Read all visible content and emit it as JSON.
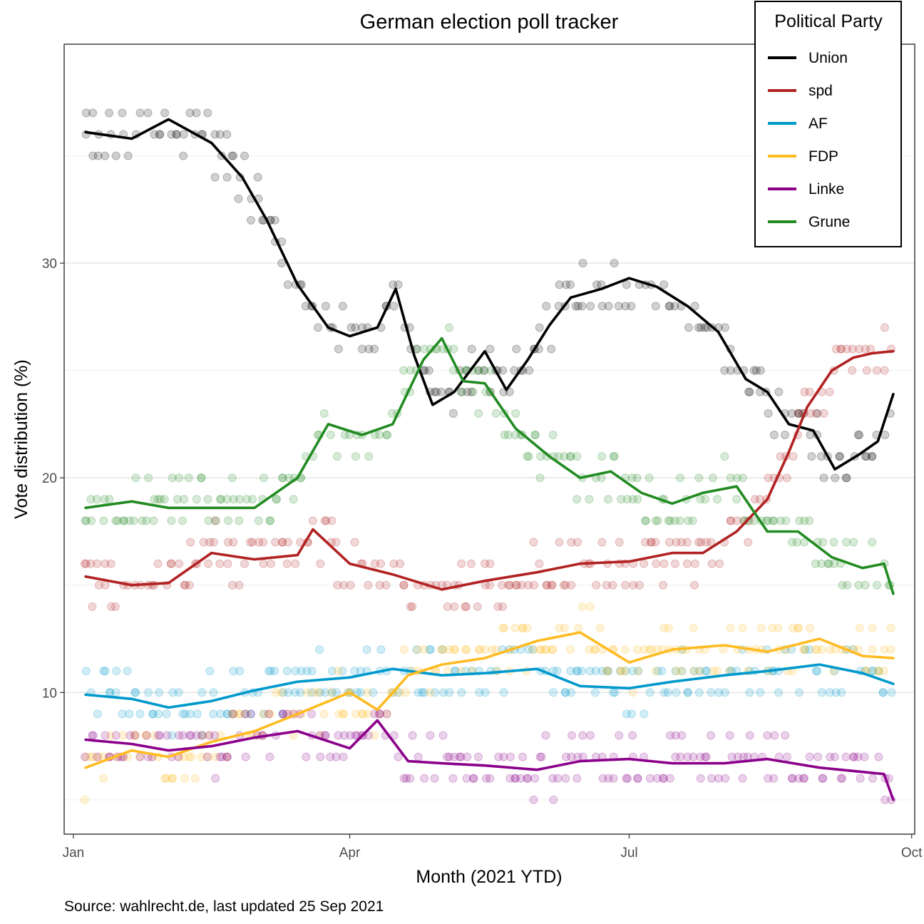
{
  "chart_data": {
    "type": "line",
    "title": "German election poll tracker",
    "xlabel": "Month (2021 YTD)",
    "ylabel": "Vote distribution (%)",
    "caption": "Source: wahlrecht.de, last updated 25 Sep 2021",
    "legend_title": "Political Party",
    "legend_position": "top-right",
    "grid": true,
    "x_type": "date",
    "xlim": [
      "2020-12-29",
      "2021-10-02"
    ],
    "ylim": [
      3.4,
      40.2
    ],
    "x_ticks": [
      {
        "date": "2021-01-01",
        "label": "Jan"
      },
      {
        "date": "2021-04-01",
        "label": "Apr"
      },
      {
        "date": "2021-07-01",
        "label": "Jul"
      },
      {
        "date": "2021-10-01",
        "label": "Oct"
      }
    ],
    "y_ticks": [
      10,
      20,
      30
    ],
    "series": [
      {
        "name": "Union",
        "color": "#000000",
        "x": [
          "2021-01-05",
          "2021-01-20",
          "2021-02-01",
          "2021-02-15",
          "2021-02-25",
          "2021-03-05",
          "2021-03-15",
          "2021-03-25",
          "2021-04-01",
          "2021-04-10",
          "2021-04-16",
          "2021-04-22",
          "2021-04-28",
          "2021-05-05",
          "2021-05-15",
          "2021-05-22",
          "2021-05-29",
          "2021-06-05",
          "2021-06-12",
          "2021-06-22",
          "2021-07-01",
          "2021-07-10",
          "2021-07-20",
          "2021-07-30",
          "2021-08-08",
          "2021-08-15",
          "2021-08-22",
          "2021-08-30",
          "2021-09-06",
          "2021-09-14",
          "2021-09-20",
          "2021-09-25"
        ],
        "values": [
          36.1,
          35.8,
          36.7,
          35.6,
          34.0,
          32.0,
          29.0,
          27.0,
          26.6,
          27.0,
          28.8,
          25.7,
          23.4,
          24.0,
          25.9,
          24.1,
          25.5,
          27.1,
          28.4,
          28.8,
          29.3,
          28.9,
          28.0,
          26.8,
          24.6,
          24.0,
          22.5,
          22.2,
          20.4,
          21.1,
          21.7,
          23.9
        ]
      },
      {
        "name": "spd",
        "color": "#B22222",
        "x": [
          "2021-01-05",
          "2021-01-20",
          "2021-02-01",
          "2021-02-15",
          "2021-03-01",
          "2021-03-15",
          "2021-03-20",
          "2021-04-01",
          "2021-04-15",
          "2021-05-01",
          "2021-05-15",
          "2021-06-01",
          "2021-06-15",
          "2021-07-01",
          "2021-07-15",
          "2021-07-25",
          "2021-08-05",
          "2021-08-15",
          "2021-08-22",
          "2021-08-28",
          "2021-09-05",
          "2021-09-12",
          "2021-09-18",
          "2021-09-25"
        ],
        "values": [
          15.4,
          15.0,
          15.1,
          16.5,
          16.2,
          16.4,
          17.6,
          16.0,
          15.5,
          14.8,
          15.2,
          15.6,
          16.0,
          16.1,
          16.5,
          16.5,
          17.5,
          19.0,
          21.2,
          23.3,
          25.0,
          25.6,
          25.8,
          25.9
        ]
      },
      {
        "name": "AF",
        "color": "#0099CC",
        "x": [
          "2021-01-05",
          "2021-01-20",
          "2021-02-01",
          "2021-02-15",
          "2021-03-01",
          "2021-03-15",
          "2021-04-01",
          "2021-04-15",
          "2021-05-01",
          "2021-05-15",
          "2021-06-01",
          "2021-06-15",
          "2021-07-01",
          "2021-07-15",
          "2021-08-01",
          "2021-08-15",
          "2021-09-01",
          "2021-09-15",
          "2021-09-25"
        ],
        "values": [
          9.9,
          9.7,
          9.3,
          9.6,
          10.1,
          10.5,
          10.7,
          11.1,
          10.8,
          10.9,
          11.1,
          10.3,
          10.2,
          10.5,
          10.8,
          11.0,
          11.3,
          10.9,
          10.4
        ]
      },
      {
        "name": "FDP",
        "color": "#FFBB22",
        "x": [
          "2021-01-05",
          "2021-01-20",
          "2021-02-01",
          "2021-02-15",
          "2021-03-01",
          "2021-03-15",
          "2021-04-01",
          "2021-04-10",
          "2021-04-20",
          "2021-05-01",
          "2021-05-15",
          "2021-06-01",
          "2021-06-15",
          "2021-07-01",
          "2021-07-15",
          "2021-08-01",
          "2021-08-15",
          "2021-09-01",
          "2021-09-15",
          "2021-09-25"
        ],
        "values": [
          6.5,
          7.3,
          7.0,
          7.7,
          8.2,
          9.0,
          10.0,
          9.2,
          10.8,
          11.3,
          11.6,
          12.4,
          12.8,
          11.4,
          12.0,
          12.2,
          11.9,
          12.5,
          11.7,
          11.6
        ]
      },
      {
        "name": "Linke",
        "color": "#8B008B",
        "x": [
          "2021-01-05",
          "2021-01-20",
          "2021-02-01",
          "2021-02-15",
          "2021-03-01",
          "2021-03-15",
          "2021-04-01",
          "2021-04-10",
          "2021-04-20",
          "2021-05-01",
          "2021-05-15",
          "2021-06-01",
          "2021-06-15",
          "2021-07-01",
          "2021-07-15",
          "2021-08-01",
          "2021-08-15",
          "2021-09-01",
          "2021-09-15",
          "2021-09-22",
          "2021-09-25"
        ],
        "values": [
          7.8,
          7.6,
          7.3,
          7.5,
          7.9,
          8.2,
          7.4,
          8.7,
          6.8,
          6.7,
          6.6,
          6.4,
          6.8,
          6.9,
          6.7,
          6.7,
          6.9,
          6.5,
          6.3,
          6.2,
          5.0
        ]
      },
      {
        "name": "Grune",
        "color": "#228B22",
        "x": [
          "2021-01-05",
          "2021-01-20",
          "2021-02-01",
          "2021-02-15",
          "2021-03-01",
          "2021-03-15",
          "2021-03-25",
          "2021-04-05",
          "2021-04-15",
          "2021-04-25",
          "2021-05-01",
          "2021-05-08",
          "2021-05-15",
          "2021-05-25",
          "2021-06-05",
          "2021-06-15",
          "2021-06-25",
          "2021-07-05",
          "2021-07-15",
          "2021-07-25",
          "2021-08-05",
          "2021-08-15",
          "2021-08-25",
          "2021-09-05",
          "2021-09-15",
          "2021-09-22",
          "2021-09-25"
        ],
        "values": [
          18.6,
          18.9,
          18.6,
          18.6,
          18.6,
          20.0,
          22.5,
          22.0,
          22.5,
          25.5,
          26.5,
          24.5,
          24.4,
          22.3,
          21.0,
          20.0,
          20.3,
          19.3,
          18.8,
          19.3,
          19.6,
          17.5,
          17.5,
          16.3,
          15.8,
          16.0,
          14.6
        ]
      }
    ]
  }
}
